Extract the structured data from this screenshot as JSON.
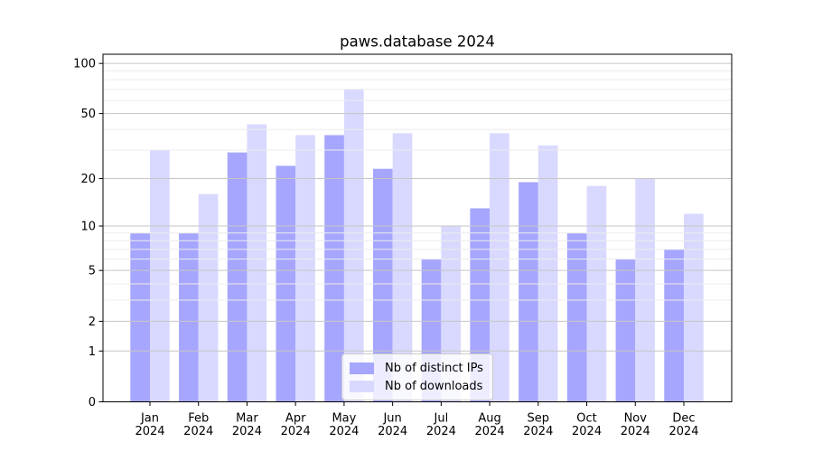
{
  "figure": {
    "title": "paws.database 2024"
  },
  "chart_data": {
    "type": "bar",
    "title": "paws.database 2024",
    "categories": [
      "Jan\n2024",
      "Feb\n2024",
      "Mar\n2024",
      "Apr\n2024",
      "May\n2024",
      "Jun\n2024",
      "Jul\n2024",
      "Aug\n2024",
      "Sep\n2024",
      "Oct\n2024",
      "Nov\n2024",
      "Dec\n2024"
    ],
    "series": [
      {
        "name": "Nb of distinct IPs",
        "color": "#a6a6ff",
        "values": [
          9,
          9,
          29,
          24,
          37,
          23,
          6,
          13,
          19,
          9,
          6,
          7
        ]
      },
      {
        "name": "Nb of downloads",
        "color": "#d9d9ff",
        "values": [
          30,
          16,
          43,
          37,
          70,
          38,
          10,
          38,
          32,
          18,
          20,
          12
        ]
      }
    ],
    "xlabel": "",
    "ylabel": "",
    "yscale": "log1p",
    "ylim": [
      0,
      113.5
    ],
    "y_major_ticks": [
      0,
      1,
      2,
      5,
      10,
      20,
      50,
      100
    ],
    "y_minor_gridlines": [
      3,
      4,
      6,
      7,
      8,
      9,
      30,
      40,
      60,
      70,
      80,
      90
    ],
    "grid": "major and minor horizontal, drawn above bars",
    "legend_position": "lower center inside plot"
  },
  "colors": {
    "background": "#ffffff",
    "bar_distinct_ips": "#a6a6ff",
    "bar_downloads": "#d9d9ff",
    "major_grid": "#c6c6c6",
    "minor_grid": "#ececec",
    "axis": "#000000",
    "legend_border": "#cbcbcb"
  }
}
